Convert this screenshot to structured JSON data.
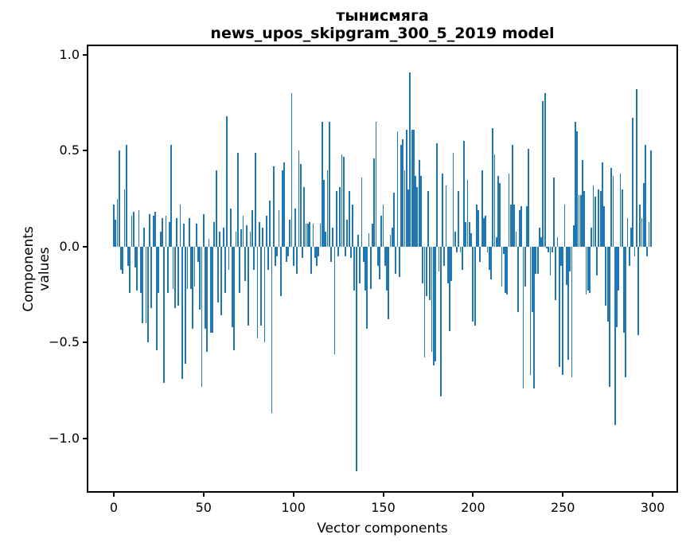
{
  "figure": {
    "title_line1": "тынисмяга",
    "title_line2": "news_upos_skipgram_300_5_2019 model"
  },
  "axes": {
    "xlabel": "Vector components",
    "ylabel": "Components values",
    "x_ticks": [
      {
        "value": 0,
        "label": "0"
      },
      {
        "value": 50,
        "label": "50"
      },
      {
        "value": 100,
        "label": "100"
      },
      {
        "value": 150,
        "label": "150"
      },
      {
        "value": 200,
        "label": "200"
      },
      {
        "value": 250,
        "label": "250"
      },
      {
        "value": 300,
        "label": "300"
      }
    ],
    "y_ticks": [
      {
        "value": 1.0,
        "label": "1.0"
      },
      {
        "value": 0.5,
        "label": "0.5"
      },
      {
        "value": 0.0,
        "label": "0.0"
      },
      {
        "value": -0.5,
        "label": "−0.5"
      },
      {
        "value": -1.0,
        "label": "−1.0"
      }
    ]
  },
  "chart_data": {
    "type": "bar",
    "title": "тынисмяга — news_upos_skipgram_300_5_2019 model",
    "xlabel": "Vector components",
    "ylabel": "Components values",
    "x_start": 0,
    "x_step": 1,
    "n_components": 300,
    "xlim": [
      -14.6,
      313.7
    ],
    "ylim": [
      -1.28,
      1.05
    ],
    "grid": false,
    "legend": null,
    "bar_color": "#1f77b4",
    "bar_width": 0.8,
    "values": [
      0.22,
      0.14,
      0.25,
      0.5,
      -0.12,
      -0.14,
      0.3,
      0.53,
      -0.1,
      -0.24,
      0.16,
      0.18,
      -0.11,
      -0.23,
      0.19,
      -0.24,
      -0.4,
      0.1,
      -0.4,
      -0.5,
      0.17,
      -0.32,
      0.16,
      0.18,
      -0.54,
      -0.24,
      0.08,
      0.15,
      -0.71,
      0.16,
      -0.24,
      0.13,
      0.53,
      -0.22,
      -0.32,
      0.15,
      -0.31,
      0.22,
      -0.69,
      0.12,
      -0.61,
      -0.22,
      0.15,
      -0.22,
      -0.43,
      -0.21,
      0.12,
      -0.08,
      -0.33,
      -0.73,
      0.17,
      -0.43,
      -0.55,
      0.04,
      -0.45,
      -0.45,
      0.13,
      0.4,
      -0.29,
      0.08,
      -0.36,
      0.1,
      -0.24,
      0.68,
      -0.12,
      0.2,
      -0.42,
      -0.54,
      0.08,
      0.49,
      -0.24,
      0.09,
      0.16,
      -0.18,
      0.11,
      -0.41,
      0.08,
      0.19,
      -0.12,
      0.49,
      -0.48,
      0.13,
      -0.41,
      0.1,
      -0.5,
      0.16,
      -0.12,
      0.24,
      -0.87,
      0.42,
      -0.1,
      -0.05,
      0.19,
      -0.26,
      0.4,
      0.44,
      -0.08,
      -0.05,
      0.14,
      0.8,
      -0.1,
      0.2,
      -0.14,
      0.5,
      0.43,
      -0.06,
      0.31,
      0.12,
      0.12,
      0.13,
      -0.14,
      0.12,
      -0.06,
      -0.1,
      -0.05,
      0.12,
      0.65,
      0.35,
      0.08,
      0.4,
      0.65,
      -0.08,
      0.1,
      -0.56,
      0.29,
      -0.05,
      0.31,
      0.48,
      0.47,
      -0.05,
      0.14,
      0.29,
      -0.06,
      0.22,
      -0.23,
      -1.17,
      0.06,
      -0.19,
      0.36,
      -0.08,
      -0.23,
      -0.43,
      0.07,
      -0.22,
      0.12,
      0.46,
      0.65,
      -0.1,
      -0.17,
      0.16,
      0.22,
      -0.1,
      -0.23,
      -0.38,
      0.06,
      0.1,
      0.28,
      -0.14,
      0.6,
      -0.16,
      0.53,
      0.56,
      0.4,
      0.61,
      0.3,
      0.91,
      0.61,
      0.61,
      0.37,
      0.31,
      0.45,
      0.37,
      -0.19,
      -0.58,
      -0.26,
      0.29,
      -0.28,
      -0.55,
      -0.62,
      -0.6,
      0.54,
      -0.13,
      -0.78,
      0.38,
      -0.1,
      0.32,
      -0.19,
      -0.44,
      -0.18,
      0.49,
      0.08,
      -0.03,
      0.29,
      -0.03,
      -0.12,
      0.55,
      0.13,
      0.35,
      0.13,
      0.07,
      -0.39,
      -0.41,
      0.22,
      0.19,
      -0.08,
      0.4,
      0.15,
      0.16,
      -0.03,
      -0.12,
      -0.17,
      0.62,
      0.48,
      0.05,
      0.37,
      0.33,
      -0.21,
      -0.04,
      -0.24,
      -0.25,
      0.38,
      0.22,
      0.53,
      0.22,
      0.08,
      -0.34,
      0.19,
      0.21,
      -0.74,
      -0.21,
      0.21,
      0.51,
      -0.67,
      -0.34,
      -0.74,
      -0.14,
      -0.14,
      0.1,
      0.05,
      0.76,
      0.8,
      -0.01,
      -0.03,
      -0.15,
      -0.03,
      0.36,
      -0.28,
      0.05,
      -0.63,
      -0.1,
      -0.67,
      0.22,
      -0.2,
      -0.59,
      -0.13,
      -0.68,
      0.11,
      0.65,
      0.6,
      0.27,
      0.27,
      0.45,
      0.29,
      -0.25,
      -0.23,
      -0.24,
      0.1,
      0.32,
      0.26,
      -0.15,
      0.3,
      0.29,
      0.44,
      0.21,
      -0.31,
      -0.39,
      -0.73,
      0.41,
      0.37,
      -0.93,
      -0.42,
      -0.23,
      0.38,
      0.3,
      -0.45,
      -0.68,
      0.15,
      -0.1,
      0.1,
      0.67,
      -0.05,
      0.82,
      -0.46,
      0.22,
      0.15,
      0.33,
      0.53,
      -0.05,
      0.13,
      0.5
    ]
  }
}
